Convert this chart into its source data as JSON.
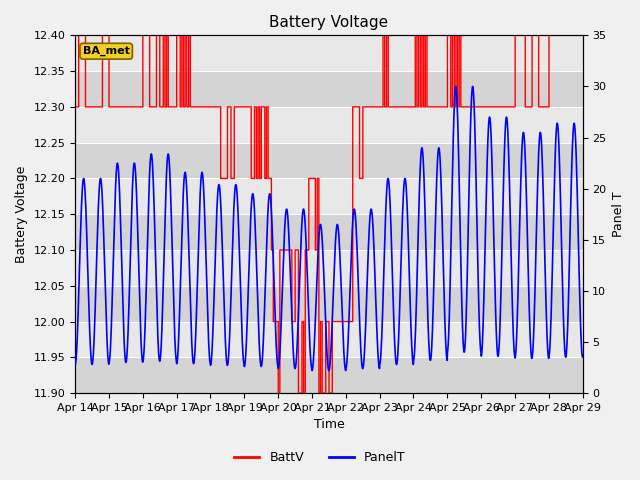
{
  "title": "Battery Voltage",
  "xlabel": "Time",
  "ylabel_left": "Battery Voltage",
  "ylabel_right": "Panel T",
  "ylim_left": [
    11.9,
    12.4
  ],
  "ylim_right": [
    0,
    35
  ],
  "legend_label": "BA_met",
  "legend_entries": [
    "BattV",
    "PanelT"
  ],
  "battv_color": "#ff0000",
  "panelt_color": "#0000ff",
  "x_tick_labels": [
    "Apr 14",
    "Apr 15",
    "Apr 16",
    "Apr 17",
    "Apr 18",
    "Apr 19",
    "Apr 20",
    "Apr 21",
    "Apr 22",
    "Apr 23",
    "Apr 24",
    "Apr 25",
    "Apr 26",
    "Apr 27",
    "Apr 28",
    "Apr 29"
  ],
  "yticks_left": [
    11.9,
    11.95,
    12.0,
    12.05,
    12.1,
    12.15,
    12.2,
    12.25,
    12.3,
    12.35,
    12.4
  ],
  "yticks_right": [
    0,
    5,
    10,
    15,
    20,
    25,
    30,
    35
  ],
  "figsize": [
    6.4,
    4.8
  ],
  "dpi": 100
}
